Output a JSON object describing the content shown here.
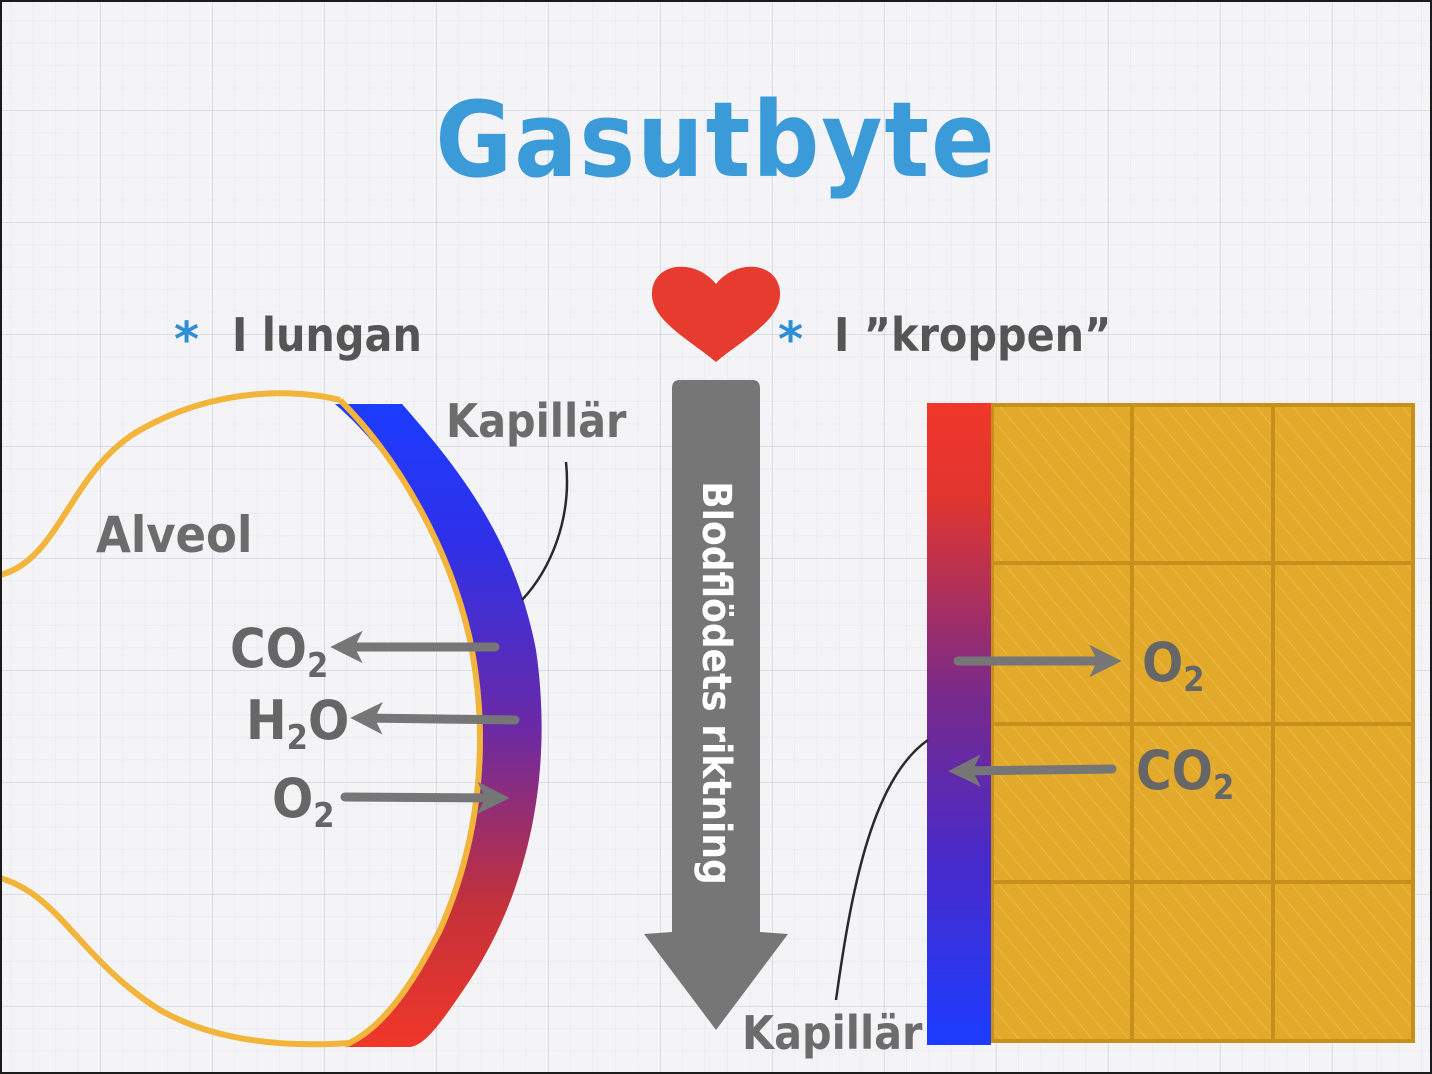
{
  "title": "Gasutbyte",
  "left": {
    "heading": "I lungan",
    "alveol_label": "Alveol",
    "capillary_label": "Kapillär",
    "gases": [
      {
        "base": "CO",
        "sub": "2",
        "direction": "out"
      },
      {
        "base": "H",
        "sub": "2",
        "tail": "O",
        "direction": "out"
      },
      {
        "base": "O",
        "sub": "2",
        "direction": "in"
      }
    ]
  },
  "center": {
    "arrow_label": "Blodflödets riktning",
    "heart_icon": "heart-icon"
  },
  "right": {
    "heading": "I ”kroppen”",
    "capillary_label": "Kapillär",
    "gases": [
      {
        "base": "O",
        "sub": "2",
        "direction": "into-tissue"
      },
      {
        "base": "CO",
        "sub": "2",
        "direction": "into-blood"
      }
    ],
    "tissue_grid": {
      "rows": 4,
      "cols": 3
    }
  },
  "colors": {
    "title": "#3b9ad8",
    "star": "#2f8fd6",
    "oxygenated": "#e8372a",
    "deoxygenated": "#1c3cff",
    "mixed": "#6a2aa6",
    "alveol_outline": "#f2b43a",
    "tissue": "#e2a92a",
    "arrow": "#767676",
    "heart": "#e63b2e"
  }
}
